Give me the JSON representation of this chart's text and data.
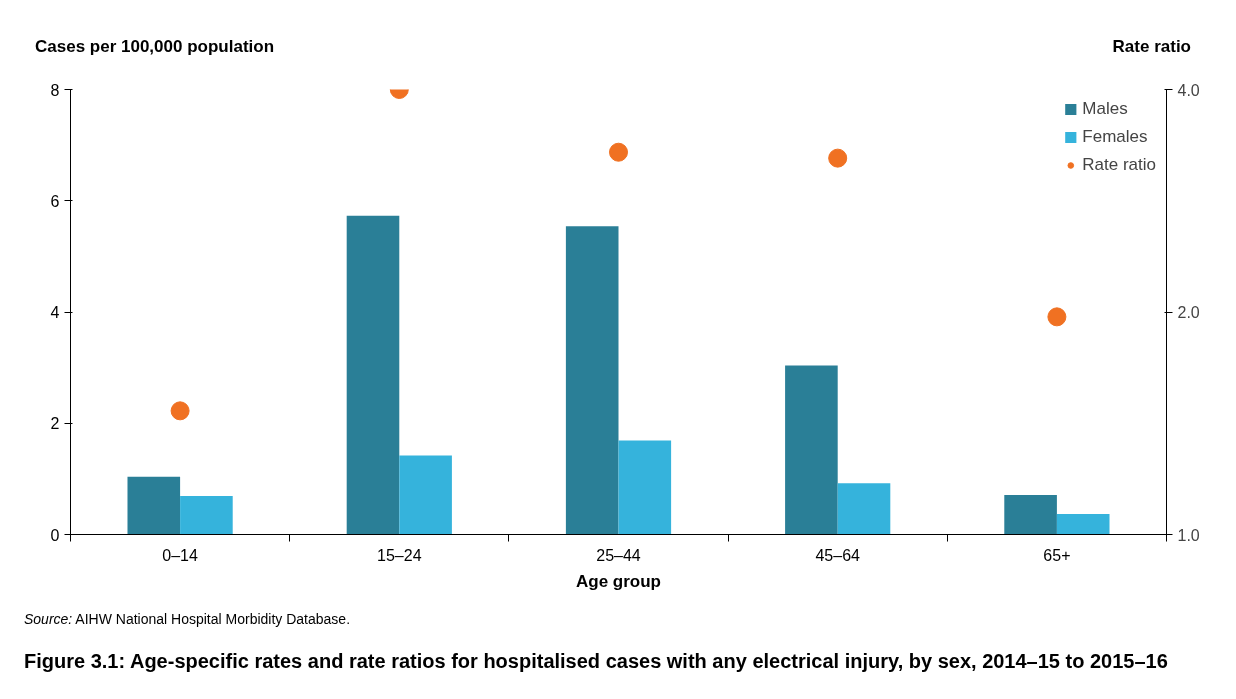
{
  "chart_data": {
    "type": "bar",
    "title": "Figure 3.1: Age-specific rates and rate ratios for hospitalised cases with any electrical injury, by sex, 2014–15 to 2015–16",
    "xlabel": "Age group",
    "ylabel": "Cases per 100,000 population",
    "y2label": "Rate ratio",
    "annotations": [
      "Source: AIHW National Hospital Morbidity Database."
    ],
    "categories": [
      "0–14",
      "15–24",
      "25–44",
      "45–64",
      "65+"
    ],
    "series": [
      {
        "name": "Males",
        "color": "#2a7f97",
        "values": [
          1.04,
          5.73,
          5.54,
          3.04,
          0.71
        ]
      },
      {
        "name": "Females",
        "color": "#35b3dc",
        "values": [
          0.69,
          1.42,
          1.69,
          0.92,
          0.37
        ]
      },
      {
        "name": "Rate ratio",
        "type": "scatter",
        "axis": "y2",
        "marker": "circle",
        "color": "#f07122",
        "values": [
          1.47,
          4.0,
          3.29,
          3.23,
          1.97
        ]
      }
    ],
    "ylim": [
      0,
      8
    ],
    "yticks": [
      0,
      2,
      4,
      6,
      8
    ],
    "y2lim": [
      1,
      4
    ],
    "y2ticks": [
      {
        "value": 1,
        "label": "1.0"
      },
      {
        "value": 2,
        "label": "2.0"
      },
      {
        "value": 4,
        "label": "4.0"
      }
    ],
    "log": "y2",
    "grid": false,
    "legend": "top right"
  }
}
